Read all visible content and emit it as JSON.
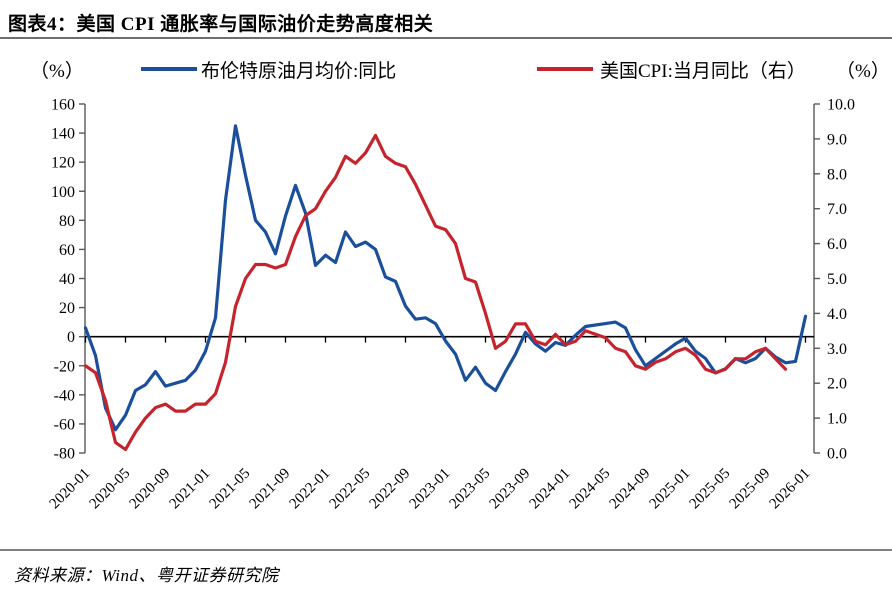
{
  "title": "图表4：美国 CPI 通胀率与国际油价走势高度相关",
  "source": "资料来源：Wind、粤开证券研究院",
  "left_axis_unit": "（%）",
  "right_axis_unit": "（%）",
  "legend": [
    {
      "label": "布伦特原油月均价:同比",
      "color": "#1b4f9c"
    },
    {
      "label": "美国CPI:当月同比（右）",
      "color": "#c5242c"
    }
  ],
  "chart_data": {
    "type": "line",
    "title": "图表4：美国 CPI 通胀率与国际油价走势高度相关",
    "legend_position": "top",
    "grid": false,
    "zero_line": true,
    "zero_line_color": "#000000",
    "axis_color": "#595959",
    "left_axis": {
      "label": "（%）",
      "min": -80,
      "max": 160,
      "ticks": [
        160,
        140,
        120,
        100,
        80,
        60,
        40,
        20,
        0,
        -20,
        -40,
        -60,
        -80
      ]
    },
    "right_axis": {
      "label": "（%）",
      "min": 0,
      "max": 10,
      "ticks": [
        "10.0",
        "9.0",
        "8.0",
        "7.0",
        "6.0",
        "5.0",
        "4.0",
        "3.0",
        "2.0",
        "1.0",
        "0.0"
      ]
    },
    "x_tick_labels": [
      "2020-01",
      "2020-05",
      "2020-09",
      "2021-01",
      "2021-05",
      "2021-09",
      "2022-01",
      "2022-05",
      "2022-09",
      "2023-01",
      "2023-05",
      "2023-09",
      "2024-01",
      "2024-05",
      "2024-09",
      "2025-01",
      "2025-05",
      "2025-09",
      "2026-01"
    ],
    "months": [
      "2020-01",
      "2020-02",
      "2020-03",
      "2020-04",
      "2020-05",
      "2020-06",
      "2020-07",
      "2020-08",
      "2020-09",
      "2020-10",
      "2020-11",
      "2020-12",
      "2021-01",
      "2021-02",
      "2021-03",
      "2021-04",
      "2021-05",
      "2021-06",
      "2021-07",
      "2021-08",
      "2021-09",
      "2021-10",
      "2021-11",
      "2021-12",
      "2022-01",
      "2022-02",
      "2022-03",
      "2022-04",
      "2022-05",
      "2022-06",
      "2022-07",
      "2022-08",
      "2022-09",
      "2022-10",
      "2022-11",
      "2022-12",
      "2023-01",
      "2023-02",
      "2023-03",
      "2023-04",
      "2023-05",
      "2023-06",
      "2023-07",
      "2023-08",
      "2023-09",
      "2023-10",
      "2023-11",
      "2023-12",
      "2024-01",
      "2024-02",
      "2024-03",
      "2024-04",
      "2024-05",
      "2024-06",
      "2024-07",
      "2024-08",
      "2024-09",
      "2024-10",
      "2024-11",
      "2024-12",
      "2025-01",
      "2025-02",
      "2025-03",
      "2025-04",
      "2025-05",
      "2025-06",
      "2025-07",
      "2025-08",
      "2025-09",
      "2025-10",
      "2025-11",
      "2025-12",
      "2026-01"
    ],
    "series": [
      {
        "name": "布伦特原油月均价:同比",
        "axis": "left",
        "color": "#1b4f9c",
        "values": [
          6,
          -13,
          -49,
          -64,
          -54,
          -37,
          -33,
          -24,
          -34,
          -32,
          -30,
          -23,
          -10,
          13,
          94,
          145,
          111,
          80,
          72,
          57,
          83,
          104,
          85,
          49,
          56,
          51,
          72,
          62,
          65,
          60,
          41,
          38,
          21,
          12,
          13,
          9,
          -3,
          -12,
          -30,
          -21,
          -32,
          -37,
          -24,
          -12,
          3,
          -5,
          -10,
          -4,
          -6,
          1,
          7,
          8,
          9,
          10,
          6,
          -9,
          -20,
          -15,
          -10,
          -5,
          -1,
          -10,
          -15,
          -25,
          -22,
          -15,
          -18,
          -15,
          -8,
          -14,
          -18,
          -17,
          14
        ]
      },
      {
        "name": "美国CPI:当月同比（右）",
        "axis": "right",
        "color": "#c5242c",
        "values": [
          2.5,
          2.3,
          1.5,
          0.3,
          0.1,
          0.6,
          1.0,
          1.3,
          1.4,
          1.2,
          1.2,
          1.4,
          1.4,
          1.7,
          2.6,
          4.2,
          5.0,
          5.4,
          5.4,
          5.3,
          5.4,
          6.2,
          6.8,
          7.0,
          7.5,
          7.9,
          8.5,
          8.3,
          8.6,
          9.1,
          8.5,
          8.3,
          8.2,
          7.7,
          7.1,
          6.5,
          6.4,
          6.0,
          5.0,
          4.9,
          4.0,
          3.0,
          3.2,
          3.7,
          3.7,
          3.2,
          3.1,
          3.4,
          3.1,
          3.2,
          3.5,
          3.4,
          3.3,
          3.0,
          2.9,
          2.5,
          2.4,
          2.6,
          2.7,
          2.9,
          3.0,
          2.8,
          2.4,
          2.3,
          2.4,
          2.7,
          2.7,
          2.9,
          3.0,
          2.7,
          2.4,
          null,
          null
        ]
      }
    ]
  }
}
